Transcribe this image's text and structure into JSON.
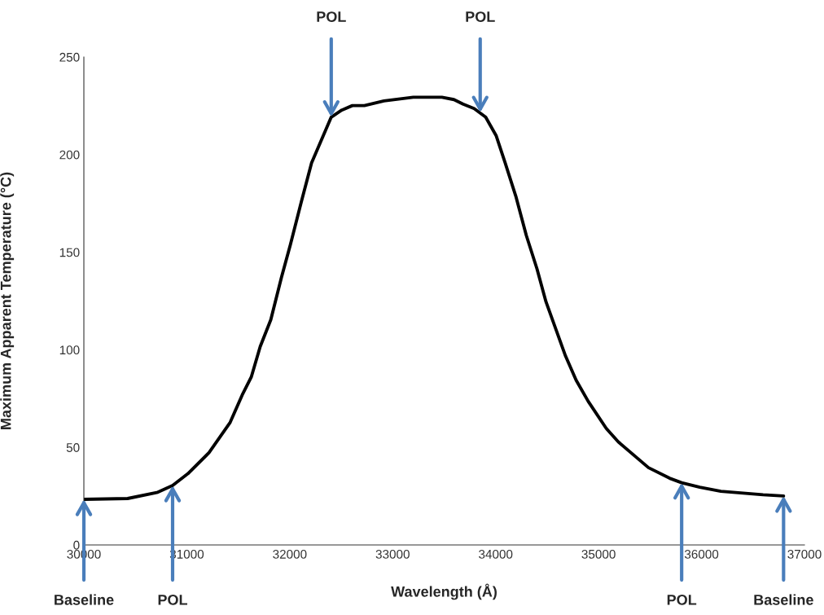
{
  "chart_data": {
    "type": "line",
    "xlabel": "Wavelength (Å)",
    "ylabel": "Maximum Apparent Temperature (°C)",
    "x": [
      30000,
      30425,
      30718,
      30862,
      31010,
      31216,
      31421,
      31538,
      31626,
      31713,
      31816,
      31919,
      32007,
      32112,
      32212,
      32403,
      32505,
      32608,
      32725,
      32915,
      33200,
      33478,
      33595,
      33683,
      33791,
      33903,
      34006,
      34093,
      34196,
      34298,
      34401,
      34489,
      34679,
      34782,
      34899,
      35075,
      35192,
      35485,
      35690,
      35807,
      35983,
      36188,
      36598,
      36797
    ],
    "series": [
      {
        "color": "#000000",
        "values": [
          23.4,
          23.8,
          27,
          30.5,
          36.5,
          47.3,
          62.8,
          76.8,
          86,
          101.6,
          115.4,
          137,
          154,
          175.7,
          195.7,
          219.2,
          222.8,
          225.1,
          225.1,
          227.5,
          229.4,
          229.4,
          228.2,
          225.9,
          223.6,
          219.2,
          209.6,
          195.7,
          178.7,
          158.6,
          141.6,
          124.6,
          96.8,
          84.4,
          73.6,
          59.7,
          52.8,
          39.6,
          34.2,
          31.9,
          29.6,
          27.5,
          25.7,
          25.1
        ]
      }
    ],
    "xlim": [
      30000,
      37000
    ],
    "xticks": [
      30000,
      31000,
      32000,
      33000,
      34000,
      35000,
      36000,
      37000
    ],
    "ylim": [
      0,
      250
    ],
    "yticks": [
      0,
      50,
      100,
      150,
      200,
      250
    ],
    "grid": false,
    "legend": false,
    "marker": "none",
    "line_style": "solid",
    "annotations": [
      {
        "text": "POL",
        "x": 32403,
        "y": 219.2
      },
      {
        "text": "POL",
        "x": 33850,
        "y": 221.5
      },
      {
        "text": "Baseline",
        "x": 30000,
        "y": 23.4
      },
      {
        "text": "POL",
        "x": 30862,
        "y": 30.5
      },
      {
        "text": "POL",
        "x": 35807,
        "y": 31.9
      },
      {
        "text": "Baseline",
        "x": 36797,
        "y": 25.1
      }
    ]
  }
}
